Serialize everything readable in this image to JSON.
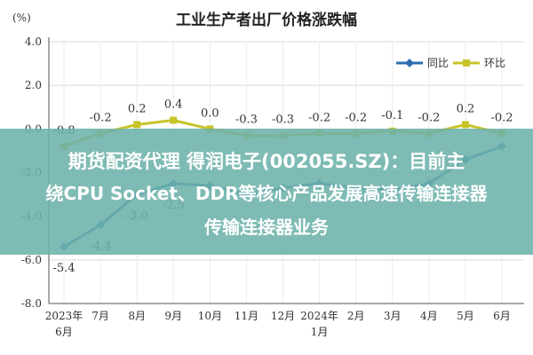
{
  "chart_data": {
    "type": "line",
    "title": "工业生产者出厂价格涨跌幅",
    "yunit": "(%)",
    "yticks": [
      "4.0",
      "2.0",
      "0.0",
      "-2.0",
      "-4.0",
      "-6.0",
      "-8.0"
    ],
    "ylim": [
      -8,
      4
    ],
    "categories": [
      {
        "top": "2023年",
        "bottom": "6月"
      },
      {
        "top": "7月",
        "bottom": ""
      },
      {
        "top": "8月",
        "bottom": ""
      },
      {
        "top": "9月",
        "bottom": ""
      },
      {
        "top": "10月",
        "bottom": ""
      },
      {
        "top": "11月",
        "bottom": ""
      },
      {
        "top": "12月",
        "bottom": ""
      },
      {
        "top": "2024年",
        "bottom": "1月"
      },
      {
        "top": "2月",
        "bottom": ""
      },
      {
        "top": "3月",
        "bottom": ""
      },
      {
        "top": "4月",
        "bottom": ""
      },
      {
        "top": "5月",
        "bottom": ""
      },
      {
        "top": "6月",
        "bottom": ""
      }
    ],
    "series": [
      {
        "name": "同比",
        "color": "#2b6cb0",
        "values": [
          -5.4,
          -4.4,
          -3.0,
          -2.5,
          -2.6,
          -3.0,
          -2.7,
          -2.5,
          -2.7,
          -2.8,
          -2.5,
          -1.4,
          -0.8
        ],
        "labels": [
          "-5.4",
          "-4.4",
          "-3.0",
          "-2.5",
          "",
          "",
          "",
          "",
          "",
          "",
          "",
          "",
          ""
        ]
      },
      {
        "name": "环比",
        "color": "#c8c42a",
        "values": [
          -0.8,
          -0.2,
          0.2,
          0.4,
          0.0,
          -0.3,
          -0.3,
          -0.2,
          -0.2,
          -0.1,
          -0.2,
          0.2,
          -0.2
        ],
        "labels": [
          "-0.8",
          "-0.2",
          "0.2",
          "0.4",
          "0.0",
          "-0.3",
          "-0.3",
          "-0.2",
          "-0.2",
          "-0.1",
          "-0.2",
          "0.2",
          "-0.2"
        ]
      }
    ],
    "grid": true,
    "legend_position": "top-right"
  },
  "overlay": {
    "line1": "期货配资代理 得润电子(002055.SZ)：目前主",
    "line2": "绕CPU Socket、DDR等核心产品发展高速传输连接器",
    "line3": "传输连接器业务"
  }
}
